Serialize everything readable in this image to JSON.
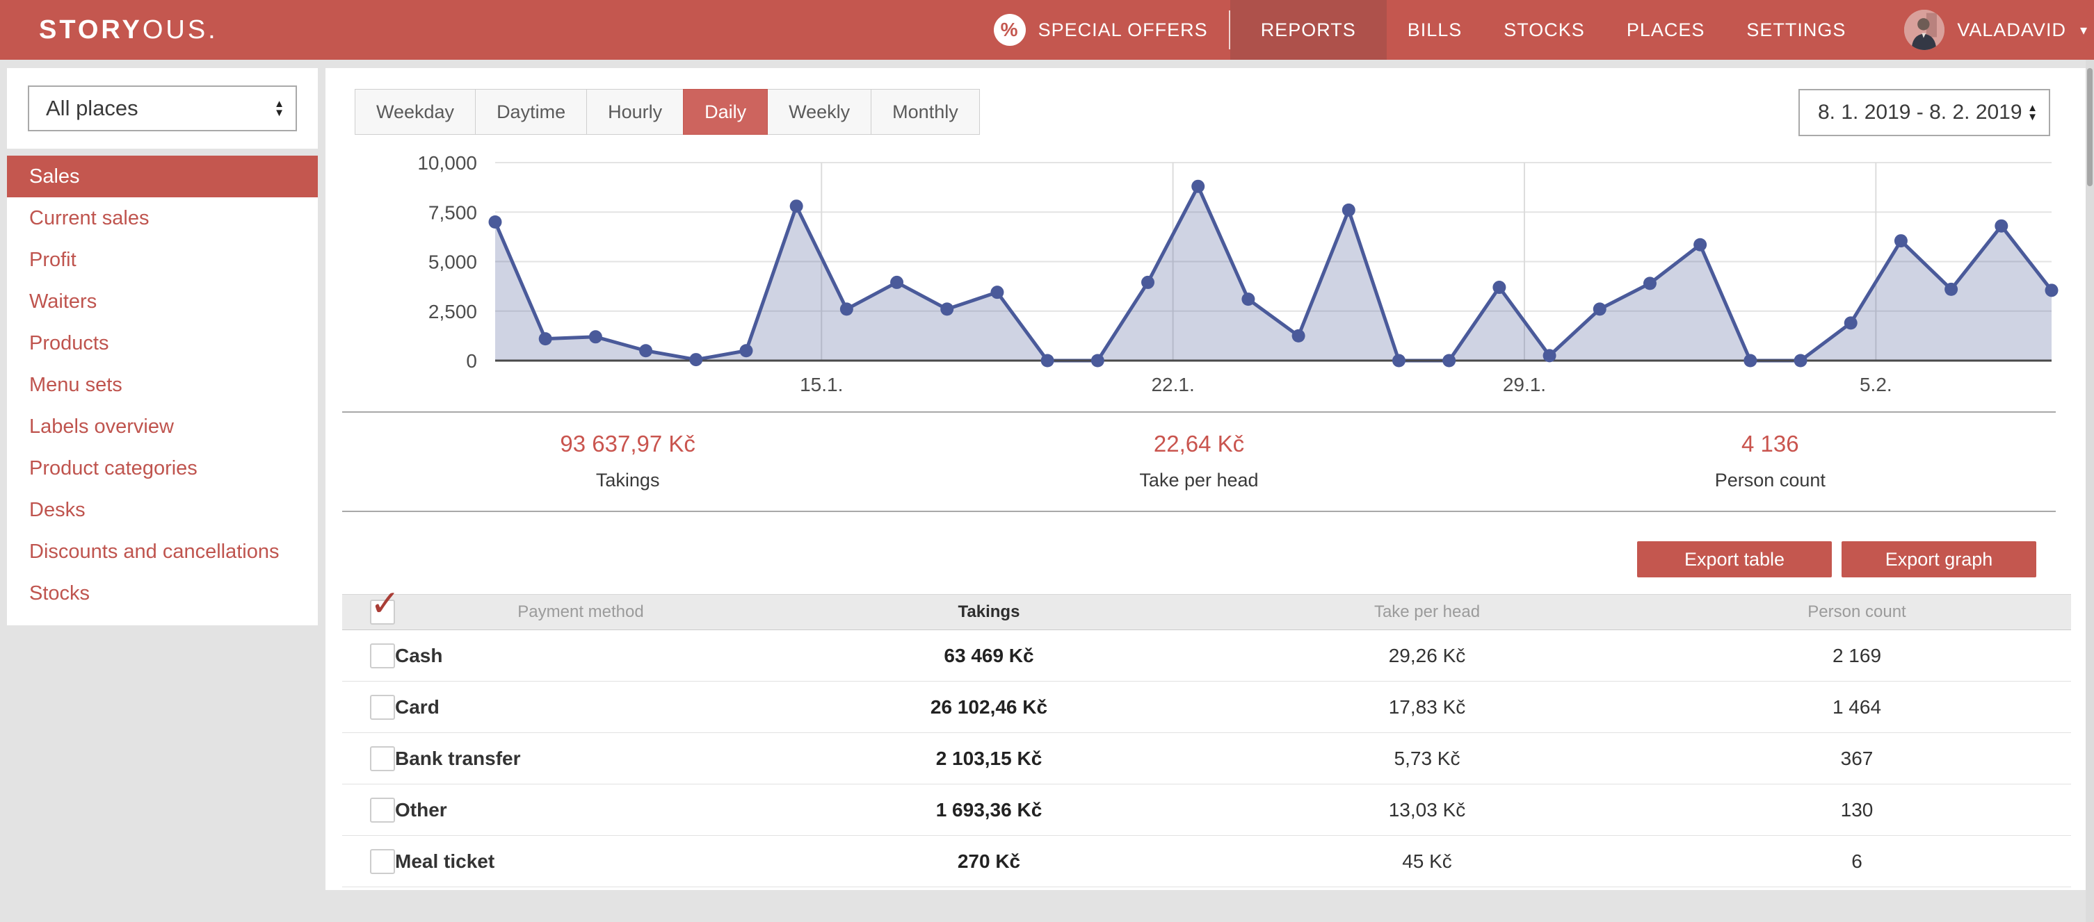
{
  "header": {
    "logo": {
      "bold": "STORY",
      "light": "OUS."
    },
    "nav": [
      {
        "id": "special-offers",
        "label": "SPECIAL OFFERS",
        "icon": "percent-badge",
        "icon_glyph": "%",
        "active": false
      },
      {
        "id": "reports",
        "label": "REPORTS",
        "active": true
      },
      {
        "id": "bills",
        "label": "BILLS",
        "active": false
      },
      {
        "id": "stocks",
        "label": "STOCKS",
        "active": false
      },
      {
        "id": "places",
        "label": "PLACES",
        "active": false
      },
      {
        "id": "settings",
        "label": "SETTINGS",
        "active": false
      }
    ],
    "user": {
      "name": "VALADAVID",
      "icon": "avatar",
      "caret": "▾"
    }
  },
  "sidebar": {
    "place_filter": {
      "value": "All places"
    },
    "items": [
      {
        "id": "sales",
        "label": "Sales",
        "active": true
      },
      {
        "id": "current-sales",
        "label": "Current sales",
        "active": false
      },
      {
        "id": "profit",
        "label": "Profit",
        "active": false
      },
      {
        "id": "waiters",
        "label": "Waiters",
        "active": false
      },
      {
        "id": "products",
        "label": "Products",
        "active": false
      },
      {
        "id": "menu-sets",
        "label": "Menu sets",
        "active": false
      },
      {
        "id": "labels-overview",
        "label": "Labels overview",
        "active": false
      },
      {
        "id": "product-categories",
        "label": "Product categories",
        "active": false
      },
      {
        "id": "desks",
        "label": "Desks",
        "active": false
      },
      {
        "id": "discounts-and-cancellations",
        "label": "Discounts and cancellations",
        "active": false
      },
      {
        "id": "stocks",
        "label": "Stocks",
        "active": false
      }
    ]
  },
  "toolbar": {
    "view_tabs": [
      {
        "id": "weekday",
        "label": "Weekday",
        "active": false
      },
      {
        "id": "daytime",
        "label": "Daytime",
        "active": false
      },
      {
        "id": "hourly",
        "label": "Hourly",
        "active": false
      },
      {
        "id": "daily",
        "label": "Daily",
        "active": true
      },
      {
        "id": "weekly",
        "label": "Weekly",
        "active": false
      },
      {
        "id": "monthly",
        "label": "Monthly",
        "active": false
      }
    ],
    "date_range": {
      "value": "8. 1. 2019 - 8. 2. 2019"
    }
  },
  "chart_data": {
    "type": "area",
    "series_name": "Takings",
    "x_dates": [
      "8.1.",
      "9.1.",
      "10.1.",
      "11.1.",
      "12.1.",
      "13.1.",
      "14.1.",
      "15.1.",
      "16.1.",
      "17.1.",
      "18.1.",
      "19.1.",
      "20.1.",
      "21.1.",
      "22.1.",
      "23.1.",
      "24.1.",
      "25.1.",
      "26.1.",
      "27.1.",
      "28.1.",
      "29.1.",
      "30.1.",
      "31.1.",
      "1.2.",
      "2.2.",
      "3.2.",
      "4.2.",
      "5.2.",
      "6.2.",
      "7.2.",
      "8.2."
    ],
    "values": [
      7000,
      1100,
      1200,
      500,
      50,
      500,
      7800,
      2600,
      3950,
      2600,
      3450,
      0,
      0,
      3950,
      8800,
      3100,
      1250,
      7600,
      0,
      0,
      3700,
      250,
      2600,
      3900,
      5850,
      0,
      0,
      1900,
      6050,
      3600,
      6800,
      3550
    ],
    "ylim": [
      0,
      10000
    ],
    "yticks": [
      0,
      2500,
      5000,
      7500,
      10000
    ],
    "ytick_labels": [
      "0",
      "2,500",
      "5,000",
      "7,500",
      "10,000"
    ],
    "xtick_labels": [
      "15.1.",
      "22.1.",
      "29.1.",
      "5.2."
    ],
    "xtick_positions": [
      6.5,
      13.5,
      20.5,
      27.5
    ],
    "grid": true,
    "legend": "none",
    "xlabel": "",
    "ylabel": "",
    "colors": {
      "line": "#4a5a9a",
      "fill": "rgba(76,92,152,0.27)",
      "marker": "#4a5a9a",
      "gridline": "#e3e3e3",
      "v_gridline": "#dcdcdc",
      "baseline": "#4a4a4a",
      "axis_text": "#4d4d4d"
    }
  },
  "summary": {
    "items": [
      {
        "value": "93 637,97 Kč",
        "label": "Takings"
      },
      {
        "value": "22,64 Kč",
        "label": "Take per head"
      },
      {
        "value": "4 136",
        "label": "Person count"
      }
    ]
  },
  "actions": {
    "export_table": "Export table",
    "export_graph": "Export graph"
  },
  "table": {
    "header": {
      "payment_method": "Payment method",
      "takings": "Takings",
      "take_per_head": "Take per head",
      "person_count": "Person count",
      "select_all_checked": true
    },
    "rows": [
      {
        "method": "Cash",
        "takings": "63 469 Kč",
        "take_per_head": "29,26 Kč",
        "person_count": "2 169",
        "checked": false
      },
      {
        "method": "Card",
        "takings": "26 102,46 Kč",
        "take_per_head": "17,83 Kč",
        "person_count": "1 464",
        "checked": false
      },
      {
        "method": "Bank transfer",
        "takings": "2 103,15 Kč",
        "take_per_head": "5,73 Kč",
        "person_count": "367",
        "checked": false
      },
      {
        "method": "Other",
        "takings": "1 693,36 Kč",
        "take_per_head": "13,03 Kč",
        "person_count": "130",
        "checked": false
      },
      {
        "method": "Meal ticket",
        "takings": "270 Kč",
        "take_per_head": "45 Kč",
        "person_count": "6",
        "checked": false
      }
    ]
  },
  "colors": {
    "header_bg": "#c4574f",
    "nav_active_bg": "#ae514b",
    "accent_red": "#c4574f",
    "tab_active_bg": "#cd645e",
    "sidebar_link": "#bf544e",
    "summary_value": "#c9544e",
    "page_bg": "#e3e3e3"
  }
}
